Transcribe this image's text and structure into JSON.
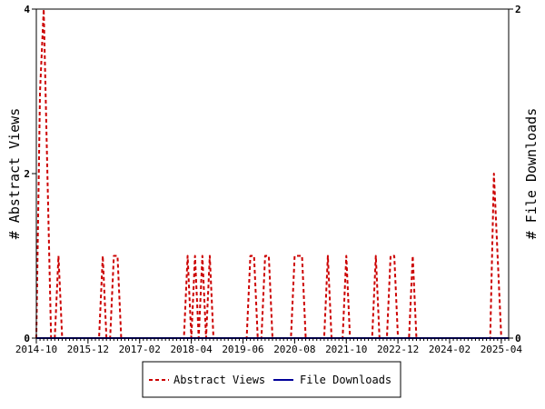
{
  "chart_data": {
    "type": "line",
    "title": "",
    "ylabel": "# Abstract Views",
    "y2label": "# File Downloads",
    "ylim": [
      0,
      4
    ],
    "y2lim": [
      0,
      2
    ],
    "yticks": [
      "0",
      "2",
      "4"
    ],
    "y2ticks": [
      "0",
      "2"
    ],
    "x_range": [
      "2014-10",
      "2025-06"
    ],
    "xtick_labels": [
      "2014-10",
      "2015-12",
      "2017-02",
      "2018-04",
      "2019-06",
      "2020-08",
      "2021-10",
      "2022-12",
      "2024-02",
      "2025-04"
    ],
    "grid": false,
    "legend_position": "bottom",
    "series": [
      {
        "name": "Abstract Views",
        "color": "#cc0000",
        "style": "dashed",
        "axis": "left",
        "x": [
          "2014-10",
          "2014-11",
          "2014-12",
          "2015-01",
          "2015-02",
          "2015-03",
          "2015-04",
          "2015-05",
          "2015-06",
          "2015-07",
          "2015-08",
          "2015-09",
          "2016-03",
          "2016-04",
          "2016-05",
          "2016-06",
          "2016-07",
          "2016-08",
          "2016-09",
          "2016-10",
          "2018-02",
          "2018-03",
          "2018-04",
          "2018-05",
          "2018-06",
          "2018-07",
          "2018-08",
          "2018-09",
          "2018-10",
          "2019-07",
          "2019-08",
          "2019-09",
          "2019-10",
          "2019-11",
          "2019-12",
          "2020-01",
          "2020-02",
          "2020-03",
          "2020-07",
          "2020-08",
          "2020-09",
          "2020-10",
          "2020-11",
          "2020-12",
          "2021-04",
          "2021-05",
          "2021-06",
          "2021-09",
          "2021-10",
          "2021-11",
          "2022-05",
          "2022-06",
          "2022-07",
          "2022-09",
          "2022-10",
          "2022-11",
          "2022-12",
          "2023-01",
          "2023-03",
          "2023-04",
          "2023-05",
          "2025-01",
          "2025-02",
          "2025-03",
          "2025-04"
        ],
        "y": [
          0,
          3,
          4,
          2,
          0,
          0,
          1,
          0,
          0,
          0,
          0,
          0,
          0,
          1,
          0,
          0,
          1,
          1,
          0,
          0,
          0,
          1,
          0,
          1,
          0,
          1,
          0,
          1,
          0,
          0,
          1,
          1,
          0,
          0,
          1,
          1,
          0,
          0,
          0,
          1,
          1,
          1,
          0,
          0,
          0,
          1,
          0,
          0,
          1,
          0,
          0,
          1,
          0,
          0,
          1,
          1,
          0,
          0,
          0,
          1,
          0,
          0,
          2,
          1,
          0
        ]
      },
      {
        "name": "File Downloads",
        "color": "#000099",
        "style": "solid",
        "axis": "right",
        "x": [
          "2014-10",
          "2025-06"
        ],
        "y": [
          0,
          0
        ]
      }
    ]
  }
}
